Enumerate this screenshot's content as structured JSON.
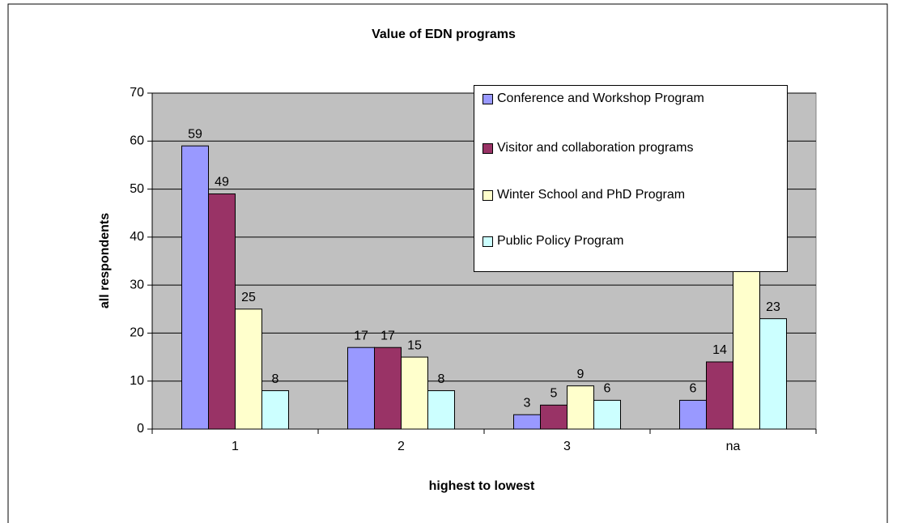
{
  "chart_data": {
    "type": "bar",
    "title": "Value of EDN programs",
    "x_label": "highest to lowest",
    "y_label": "all respondents",
    "categories": [
      "1",
      "2",
      "3",
      "na"
    ],
    "series": [
      {
        "name": "Conference and Workshop Program",
        "color": "#9999ff",
        "values": [
          59,
          17,
          3,
          6
        ]
      },
      {
        "name": "Visitor and collaboration programs",
        "color": "#993366",
        "values": [
          49,
          17,
          5,
          14
        ]
      },
      {
        "name": "Winter School and PhD Program",
        "color": "#ffffcc",
        "values": [
          25,
          15,
          9,
          37
        ]
      },
      {
        "name": "Public Policy Program",
        "color": "#ccffff",
        "values": [
          8,
          8,
          6,
          23
        ]
      }
    ],
    "ylim": [
      0,
      70
    ],
    "yticks": [
      0,
      10,
      20,
      30,
      40,
      50,
      60,
      70
    ],
    "grid": true,
    "legend": "upper right"
  }
}
